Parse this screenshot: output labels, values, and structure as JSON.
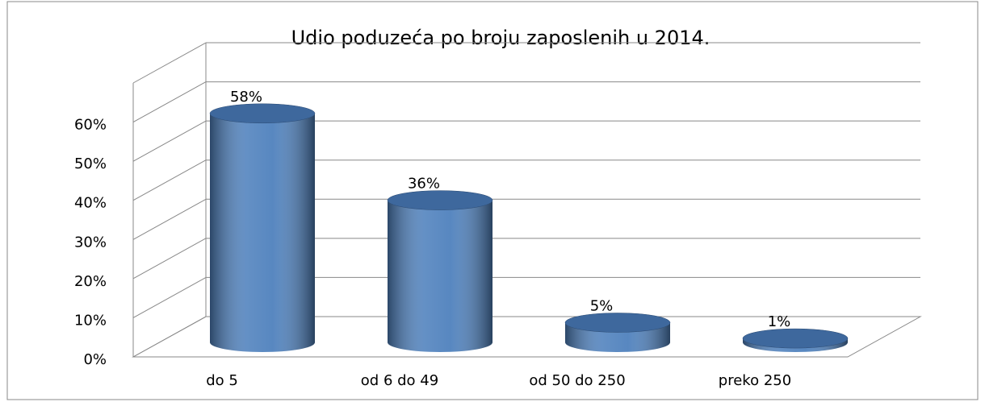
{
  "chart_data": {
    "type": "bar3d",
    "title": "Udio poduzeća po broju zaposlenih u 2014.",
    "categories": [
      "do 5",
      "od 6 do 49",
      "od 50 do 250",
      "preko 250"
    ],
    "values": [
      58,
      36,
      5,
      1
    ],
    "value_labels": [
      "58%",
      "36%",
      "5%",
      "1%"
    ],
    "color": "#4f81bd",
    "ylim": [
      0,
      70
    ],
    "yticks": [
      {
        "value": 0,
        "label": "0%"
      },
      {
        "value": 10,
        "label": "10%"
      },
      {
        "value": 20,
        "label": "20%"
      },
      {
        "value": 30,
        "label": "30%"
      },
      {
        "value": 40,
        "label": "40%"
      },
      {
        "value": 50,
        "label": "50%"
      },
      {
        "value": 60,
        "label": "60%"
      }
    ],
    "grid": true
  }
}
